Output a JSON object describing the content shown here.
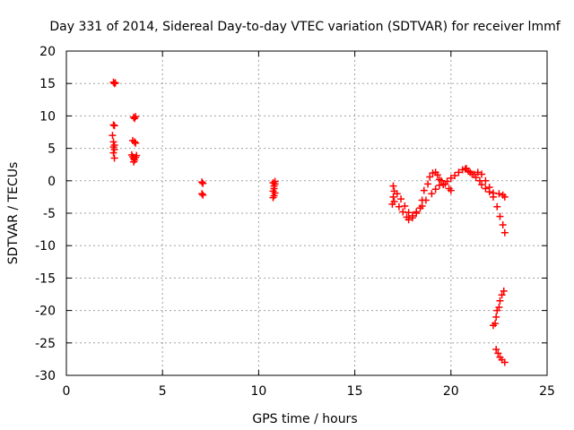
{
  "chart_data": {
    "type": "scatter",
    "title": "Day 331 of 2014, Sidereal Day-to-day VTEC variation (SDTVAR) for receiver lmmf",
    "xlabel": "GPS time / hours",
    "ylabel": "SDTVAR / TECUs",
    "xlim": [
      0,
      25
    ],
    "ylim": [
      -30,
      20
    ],
    "xticks": [
      0,
      5,
      10,
      15,
      20,
      25
    ],
    "yticks": [
      -30,
      -25,
      -20,
      -15,
      -10,
      -5,
      0,
      5,
      10,
      15,
      20
    ],
    "grid": true,
    "marker": "plus",
    "color": "#ff0000",
    "series": [
      {
        "name": "SDTVAR",
        "points": [
          [
            2.45,
            15.2
          ],
          [
            2.5,
            15.0
          ],
          [
            2.55,
            15.1
          ],
          [
            2.45,
            8.6
          ],
          [
            2.5,
            8.5
          ],
          [
            2.4,
            7.0
          ],
          [
            2.45,
            6.0
          ],
          [
            2.5,
            5.5
          ],
          [
            2.45,
            5.2
          ],
          [
            2.5,
            4.8
          ],
          [
            2.45,
            4.3
          ],
          [
            2.5,
            3.5
          ],
          [
            3.5,
            9.8
          ],
          [
            3.55,
            9.6
          ],
          [
            3.6,
            9.9
          ],
          [
            3.45,
            6.2
          ],
          [
            3.55,
            6.0
          ],
          [
            3.6,
            5.8
          ],
          [
            3.4,
            4.0
          ],
          [
            3.45,
            3.7
          ],
          [
            3.5,
            3.4
          ],
          [
            3.55,
            3.2
          ],
          [
            3.6,
            3.6
          ],
          [
            3.65,
            3.9
          ],
          [
            3.5,
            2.9
          ],
          [
            7.05,
            -0.2
          ],
          [
            7.1,
            -0.4
          ],
          [
            7.05,
            -2.0
          ],
          [
            7.1,
            -2.2
          ],
          [
            10.75,
            -0.3
          ],
          [
            10.8,
            -0.8
          ],
          [
            10.85,
            -0.5
          ],
          [
            10.8,
            -1.2
          ],
          [
            10.75,
            -1.6
          ],
          [
            10.85,
            -1.9
          ],
          [
            10.8,
            -2.3
          ],
          [
            10.75,
            -2.6
          ],
          [
            10.85,
            -0.1
          ],
          [
            17.0,
            -0.8
          ],
          [
            17.05,
            -1.6
          ],
          [
            17.0,
            -2.5
          ],
          [
            16.95,
            -3.6
          ],
          [
            17.05,
            -3.2
          ],
          [
            17.2,
            -2.0
          ],
          [
            17.4,
            -2.8
          ],
          [
            17.6,
            -3.9
          ],
          [
            17.8,
            -4.9
          ],
          [
            18.0,
            -5.4
          ],
          [
            18.2,
            -5.0
          ],
          [
            18.4,
            -4.2
          ],
          [
            18.5,
            -3.0
          ],
          [
            18.6,
            -1.5
          ],
          [
            18.8,
            -0.5
          ],
          [
            18.9,
            0.6
          ],
          [
            19.05,
            1.2
          ],
          [
            19.2,
            1.3
          ],
          [
            19.3,
            0.9
          ],
          [
            19.4,
            0.2
          ],
          [
            17.3,
            -4.0
          ],
          [
            17.5,
            -4.8
          ],
          [
            17.7,
            -5.6
          ],
          [
            17.8,
            -6.0
          ],
          [
            18.0,
            -5.7
          ],
          [
            18.2,
            -4.8
          ],
          [
            18.5,
            -3.9
          ],
          [
            18.7,
            -3.0
          ],
          [
            19.0,
            -2.0
          ],
          [
            19.2,
            -1.3
          ],
          [
            19.4,
            -0.7
          ],
          [
            19.6,
            -0.6
          ],
          [
            19.8,
            -0.1
          ],
          [
            20.0,
            0.4
          ],
          [
            20.2,
            0.8
          ],
          [
            20.4,
            1.3
          ],
          [
            20.6,
            1.7
          ],
          [
            20.75,
            1.8
          ],
          [
            20.9,
            1.5
          ],
          [
            21.1,
            1.0
          ],
          [
            21.3,
            0.5
          ],
          [
            21.5,
            0.0
          ],
          [
            21.6,
            -0.6
          ],
          [
            21.8,
            -1.2
          ],
          [
            22.0,
            -1.7
          ],
          [
            22.2,
            -1.9
          ],
          [
            22.5,
            -2.0
          ],
          [
            22.7,
            -2.2
          ],
          [
            22.8,
            -2.5
          ],
          [
            19.5,
            0.0
          ],
          [
            19.7,
            -0.5
          ],
          [
            19.9,
            -1.2
          ],
          [
            20.0,
            -1.5
          ],
          [
            20.8,
            1.9
          ],
          [
            21.0,
            1.3
          ],
          [
            21.2,
            1.0
          ],
          [
            21.4,
            1.3
          ],
          [
            21.6,
            1.0
          ],
          [
            21.8,
            0.0
          ],
          [
            22.0,
            -1.0
          ],
          [
            22.2,
            -2.5
          ],
          [
            22.4,
            -4.0
          ],
          [
            22.55,
            -5.5
          ],
          [
            22.7,
            -6.8
          ],
          [
            22.8,
            -8.0
          ],
          [
            22.2,
            -22.3
          ],
          [
            22.3,
            -22.0
          ],
          [
            22.35,
            -21.0
          ],
          [
            22.4,
            -20.0
          ],
          [
            22.5,
            -19.5
          ],
          [
            22.55,
            -18.5
          ],
          [
            22.65,
            -17.6
          ],
          [
            22.75,
            -17.0
          ],
          [
            22.35,
            -26.0
          ],
          [
            22.45,
            -26.6
          ],
          [
            22.55,
            -27.2
          ],
          [
            22.65,
            -27.6
          ],
          [
            22.8,
            -28.0
          ]
        ]
      }
    ]
  }
}
